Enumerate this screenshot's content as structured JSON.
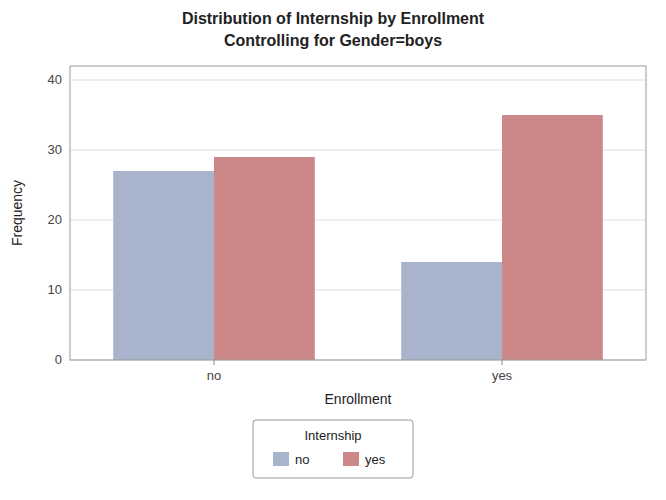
{
  "chart_data": {
    "type": "bar",
    "title": "Distribution of Internship by Enrollment",
    "subtitle": "Controlling for Gender=boys",
    "x_label": "Enrollment",
    "y_label": "Frequency",
    "categories": [
      "no",
      "yes"
    ],
    "series": [
      {
        "name": "no",
        "color": "#a8b4cc",
        "values": [
          27,
          14
        ]
      },
      {
        "name": "yes",
        "color": "#cc8888",
        "values": [
          29,
          35
        ]
      }
    ],
    "legend_title": "Internship",
    "ylim": [
      0,
      42
    ],
    "yticks": [
      0,
      10,
      20,
      30,
      40
    ],
    "grid": true,
    "legend": "bottom"
  }
}
